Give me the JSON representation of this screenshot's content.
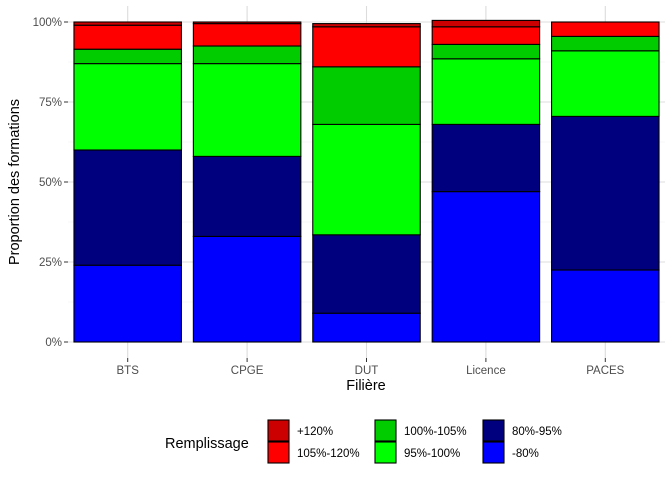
{
  "chart_data": {
    "type": "bar",
    "stacked": true,
    "xlabel": "Filière",
    "ylabel": "Proportion des formations",
    "ylim": [
      0,
      1
    ],
    "yticks": [
      {
        "value": 0,
        "label": "0%"
      },
      {
        "value": 0.25,
        "label": "25%"
      },
      {
        "value": 0.5,
        "label": "50%"
      },
      {
        "value": 0.75,
        "label": "75%"
      },
      {
        "value": 1,
        "label": "100%"
      }
    ],
    "grid": true,
    "legend_position": "bottom",
    "legend_title": "Remplissage",
    "categories": [
      "BTS",
      "CPGE",
      "DUT",
      "Licence",
      "PACES"
    ],
    "series": [
      {
        "name": "-80%",
        "color": "#0000ff",
        "values": [
          0.24,
          0.33,
          0.09,
          0.47,
          0.225
        ]
      },
      {
        "name": "80%-95%",
        "color": "#00007f",
        "values": [
          0.36,
          0.25,
          0.245,
          0.21,
          0.48
        ]
      },
      {
        "name": "95%-100%",
        "color": "#00ff00",
        "values": [
          0.27,
          0.29,
          0.345,
          0.205,
          0.205
        ]
      },
      {
        "name": "100%-105%",
        "color": "#00cc00",
        "values": [
          0.045,
          0.055,
          0.18,
          0.045,
          0.045
        ]
      },
      {
        "name": "105%-120%",
        "color": "#ff0000",
        "values": [
          0.075,
          0.07,
          0.125,
          0.055,
          0.045
        ]
      },
      {
        "name": "+120%",
        "color": "#cc0000",
        "values": [
          0.01,
          0.005,
          0.01,
          0.02,
          0.0
        ]
      }
    ],
    "legend_order": [
      "+120%",
      "105%-120%",
      "100%-105%",
      "95%-100%",
      "80%-95%",
      "-80%"
    ]
  }
}
